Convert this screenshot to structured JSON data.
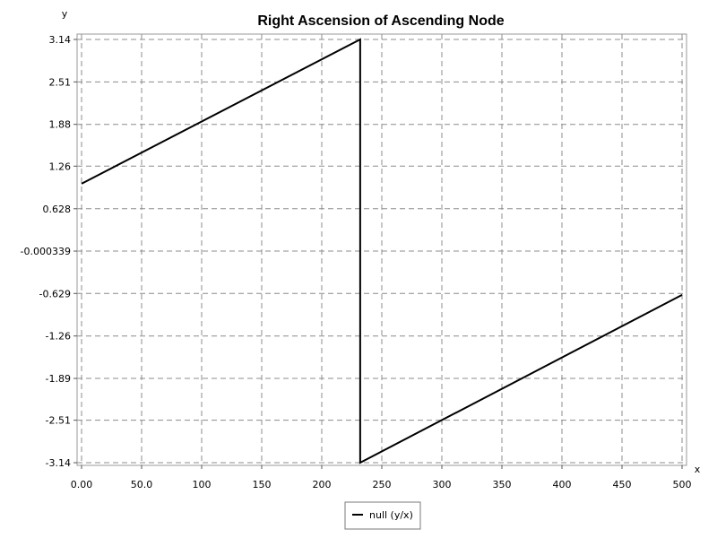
{
  "chart_data": {
    "type": "line",
    "title": "Right Ascension of Ascending Node",
    "xlabel": "x",
    "ylabel": "y",
    "xlim": [
      0,
      500
    ],
    "ylim": [
      -3.14,
      3.14
    ],
    "grid": true,
    "legend_position": "bottom-center",
    "x_ticks": [
      0,
      50,
      100,
      150,
      200,
      250,
      300,
      350,
      400,
      450,
      500
    ],
    "x_tick_labels": [
      "0.00",
      "50.0",
      "100",
      "150",
      "200",
      "250",
      "300",
      "350",
      "400",
      "450",
      "500"
    ],
    "y_ticks": [
      3.14,
      2.51,
      1.88,
      1.26,
      0.628,
      -0.000339,
      -0.629,
      -1.26,
      -1.89,
      -2.51,
      -3.14
    ],
    "y_tick_labels": [
      "3.14",
      "2.51",
      "1.88",
      "1.26",
      "0.628",
      "-0.000339",
      "-0.629",
      "-1.26",
      "-1.89",
      "-2.51",
      "-3.14"
    ],
    "series": [
      {
        "name": "null (y/x)",
        "color": "#000000",
        "x": [
          0,
          232,
          232,
          500
        ],
        "y": [
          1.0,
          3.14,
          -3.14,
          -0.65
        ]
      }
    ]
  }
}
